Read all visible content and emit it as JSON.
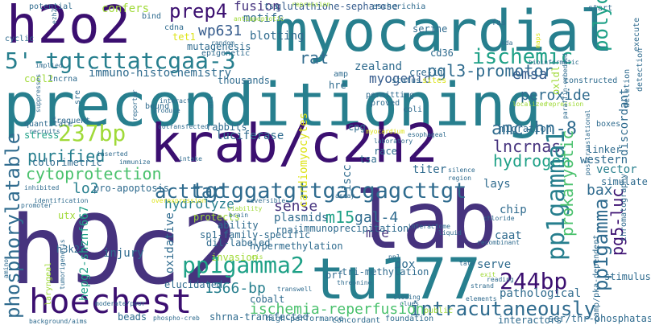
{
  "palette": {
    "dark_purple": "#3b0f70",
    "indigo": "#46337e",
    "slate_blue": "#365c8d",
    "steel": "#2f6b8e",
    "teal": "#277f8e",
    "teal_green": "#1fa187",
    "green": "#4ac16d",
    "lime": "#a0da39",
    "yellow": "#dde318"
  },
  "words": {
    "h9c2": "h9c2",
    "preconditioning": "preconditioning",
    "lab": "lab",
    "krab_c2h2": "krab/c2h2",
    "myocardial": "myocardial",
    "h2o2": "h2o2",
    "tu177": "tu177",
    "hoechest": "hoechest",
    "tgtcttatcgaa": "5'-tgtcttatcgaa-3",
    "tgtggatgttgacgagcttgt": "tgtggatgttgacgagcttgt",
    "bp237": "237bp",
    "ischemic": "ischemic",
    "pp1gamma1": "pp1gamma1",
    "pp1gamma2": "pp1gamma2",
    "pp1gamma": "pp1gamma",
    "intracutaneously": "intracutaneously",
    "bp244": "244bp",
    "phosphorylatable": "phosphorylatable",
    "ischemia_reperfusion": "ischemia-reperfusion",
    "prep4": "prep4",
    "amc_hn_8": "amc-hn-8",
    "acttac": "acttac",
    "pgl3_promotor": "pgl3-promotor",
    "cytoprotection": "cytoprotection",
    "polyclonal": "polyclonal",
    "emsa": "emsa",
    "rat": "rat",
    "hydrogen": "hydrogen",
    "lncrnas": "lncrnas",
    "purified": "purified",
    "peroxide": "peroxide",
    "prokaryotic": "prokaryotic",
    "pg5_luc": "pg5-luc",
    "bax": "bax",
    "m15": "m15",
    "gal_4": "gal-4",
    "fusion": "fusion",
    "wp631": "wp631",
    "myogenic": "myogenic",
    "sense": "sense",
    "lo2": "lo2",
    "hydrolyze": "hydrolyze",
    "mre": "mre",
    "bp1366": "1366-bp",
    "glutathione_sepharose": "glutathione-sepharose",
    "motifs": "motifs",
    "blotting": "blotting",
    "mutagenesis": "mutagenesis",
    "immuno_histochemistry": "immuno-histochemistry",
    "zealand": "zealand",
    "cre_ii": "cre-ii",
    "luciferase": "luciferase",
    "colorimetric": "colorimetric",
    "titer": "titer",
    "western": "western",
    "vector": "vector",
    "cardiomyocytes": "cardiomyocytes",
    "rabbits": "rabbits",
    "thousands": "thousands",
    "cocl2": "cocl2",
    "plasmids": "plasmids",
    "rnai": "rnai",
    "immunoprecipitation": "immunoprecipitation",
    "dox": "dox",
    "chip": "chip",
    "hepg2_shznf667": "hepg2-shznf667",
    "hypermethylation": "hypermethylation",
    "oxidative": "oxidative",
    "pathological": "pathological",
    "serve": "serve",
    "injury": "injury",
    "invasion": "invasion",
    "elucidated": "elucidated",
    "cobalt": "cobalt",
    "dil_labeled": "dil-labeled",
    "pro_apoptosis": "pro-apoptosis",
    "ability": "ability",
    "protects": "protects",
    "interactors": "interactors",
    "discordant": "discordant",
    "iscc": "iscc",
    "cpg": "cpg",
    "tsa": "tsa",
    "tet1": "tet1",
    "confers": "confers",
    "sp1_family_specific": "sp1-family-specific",
    "tri_methylation": "tri-methylation",
    "orf": "orf",
    "oxldl": "oxldl",
    "caat": "caat",
    "h3k27": "h3k27",
    "utx": "utx",
    "stress": "stress",
    "beads": "beads",
    "shrna_transfected": "shrna-transfected",
    "high_performance": "high-performance",
    "concordant": "concordant",
    "foundation": "foundation",
    "public": "public",
    "ser_thr_phosphatase": "ser/thr-phosphatase",
    "camp_pka_dependent": "camp/pka-dependent",
    "chromatography": "chromatography",
    "stimulus": "stimulus",
    "simulate": "simulate",
    "linker": "linker",
    "boxes": "boxes",
    "migration": "migration",
    "lays": "lays",
    "race": "race",
    "sites": "sites",
    "permitting": "permitting",
    "proved": "proved",
    "amp": "amp",
    "hre": "hre",
    "bound": "bound",
    "cdna": "cdna",
    "epigenetic": "epigenetic",
    "escherichia": "escherichia",
    "serine": "serine",
    "cd36": "cd36",
    "fas": "fas",
    "start": "start",
    "execute": "execute",
    "detection": "detection",
    "deletion": "deletion",
    "constructed": "constructed",
    "status": "status",
    "coli": "coli",
    "frequent": "frequent",
    "quantitate": "quantitate",
    "recruits": "recruits",
    "lncrna": "lncrna",
    "implied": "implied",
    "cyclic": "cyclic",
    "potential": "potential",
    "bind": "bind",
    "tss": "tss",
    "repression": "repression",
    "antiapoptotic": "antiapoptotic",
    "random": "random",
    "immunize": "immunize",
    "inserted": "inserted",
    "produce": "produce",
    "cotransfected": "cotransfected",
    "reporter": "reporter",
    "interact": "interact",
    "mtt": "mtt",
    "intake": "intake",
    "brain": "brain",
    "viability": "viability",
    "reversible": "reversible",
    "overexpression": "overexpression",
    "identification": "identification",
    "promoter": "promoter",
    "inhibited": "inhibited",
    "laryngeal": "laryngeal",
    "tumorigenesis": "tumorigenesis",
    "moderate_poor": "moderate/poor",
    "background_aims": "background/aims",
    "phospho_creb": "phospho-creb",
    "closing": "closing",
    "clues": "clues",
    "strand": "strand",
    "elements": "elements",
    "exit": "exit",
    "reading": "reading",
    "recombinant": "recombinant",
    "chloride": "chloride",
    "liquid": "liquid",
    "interactome": "interactome",
    "assay": "assay",
    "esophageal": "esophageal",
    "silence": "silence",
    "region": "region",
    "transwell": "transwell",
    "pp1": "pp1",
    "threonine": "threonine",
    "tata": "tata",
    "localized": "localized",
    "posttranslational": "posttranslational",
    "bioinformatic": "bioinformatic",
    "paraffin_embedded": "paraffin-embedded",
    "amino": "amino",
    "suppresses": "suppresses",
    "sre": "sre",
    "ezh2": "ezh2",
    "myocardium": "myocardium",
    "laboratory": "laboratory",
    "kda": "kda",
    "maps": "maps",
    "cis": "cis"
  }
}
